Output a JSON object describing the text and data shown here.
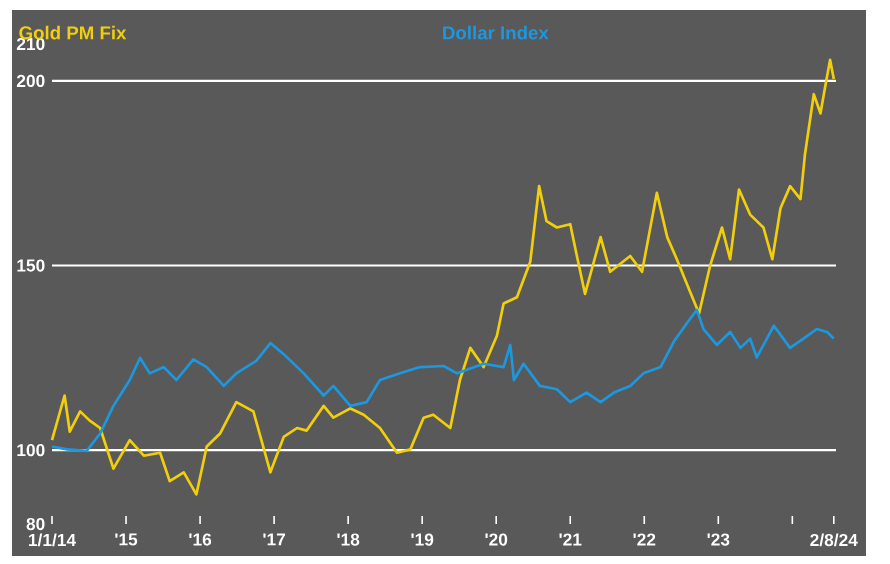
{
  "chart_data": {
    "type": "line",
    "xlim": [
      2014,
      2024.59
    ],
    "ylim": [
      80,
      210
    ],
    "xticks": [
      {
        "value": 2014,
        "label": "1/1/14"
      },
      {
        "value": 2015,
        "label": "'15"
      },
      {
        "value": 2016,
        "label": "'16"
      },
      {
        "value": 2017,
        "label": "'17"
      },
      {
        "value": 2018,
        "label": "'18"
      },
      {
        "value": 2019,
        "label": "'19"
      },
      {
        "value": 2020,
        "label": "'20"
      },
      {
        "value": 2021,
        "label": "'21"
      },
      {
        "value": 2022,
        "label": "'22"
      },
      {
        "value": 2023,
        "label": "'23"
      },
      {
        "value": 2024,
        "label": null
      },
      {
        "value": 2024.56,
        "label": "2/8/24"
      }
    ],
    "yticks": [
      80,
      100,
      150,
      200,
      210
    ],
    "grid": "y",
    "legend": "top",
    "marker": "none",
    "line_style": "solid",
    "series": [
      {
        "name": "Gold PM Fix",
        "color": "#f2cf0c",
        "x": [
          2014.0,
          2014.17,
          2014.24,
          2014.38,
          2014.51,
          2014.65,
          2014.83,
          2015.05,
          2015.24,
          2015.46,
          2015.59,
          2015.78,
          2015.95,
          2016.09,
          2016.27,
          2016.49,
          2016.72,
          2016.95,
          2017.13,
          2017.31,
          2017.44,
          2017.67,
          2017.8,
          2018.03,
          2018.21,
          2018.43,
          2018.66,
          2018.84,
          2019.02,
          2019.15,
          2019.38,
          2019.51,
          2019.65,
          2019.83,
          2020.01,
          2020.1,
          2020.28,
          2020.46,
          2020.58,
          2020.68,
          2020.82,
          2021.0,
          2021.09,
          2021.2,
          2021.41,
          2021.54,
          2021.81,
          2021.97,
          2022.17,
          2022.31,
          2022.44,
          2022.58,
          2022.74,
          2022.89,
          2023.05,
          2023.16,
          2023.28,
          2023.43,
          2023.61,
          2023.73,
          2023.84,
          2023.97,
          2024.11,
          2024.17,
          2024.29,
          2024.38,
          2024.44,
          2024.51,
          2024.56
        ],
        "values": [
          102.7,
          114.8,
          105,
          110.5,
          108,
          106,
          95,
          102.7,
          98.5,
          99.3,
          91.6,
          94,
          88,
          101,
          104.5,
          113,
          110.5,
          94,
          103.6,
          106,
          105.3,
          112,
          108.8,
          111.3,
          109.6,
          106,
          99.3,
          100.2,
          108.8,
          109.6,
          106,
          119,
          127.7,
          122.5,
          131,
          139.7,
          141.4,
          151,
          171.5,
          162,
          160.3,
          161.2,
          152.6,
          142.3,
          157.7,
          148.3,
          152.6,
          148.3,
          169.7,
          157.7,
          151.7,
          144.8,
          137,
          150,
          160.3,
          151.7,
          170.6,
          163.8,
          160.3,
          151.7,
          165.5,
          171.5,
          168,
          180,
          196.4,
          191.2,
          198,
          205.7,
          200.5
        ]
      },
      {
        "name": "Dollar Index",
        "color": "#1b98e0",
        "x": [
          2014.0,
          2014.2,
          2014.47,
          2014.65,
          2014.83,
          2015.05,
          2015.19,
          2015.32,
          2015.51,
          2015.68,
          2015.91,
          2016.09,
          2016.32,
          2016.49,
          2016.76,
          2016.95,
          2017.13,
          2017.4,
          2017.67,
          2017.8,
          2018.03,
          2018.25,
          2018.43,
          2018.7,
          2018.97,
          2019.29,
          2019.47,
          2019.83,
          2020.1,
          2020.19,
          2020.24,
          2020.37,
          2020.59,
          2020.82,
          2021.0,
          2021.22,
          2021.41,
          2021.59,
          2021.81,
          2021.99,
          2022.22,
          2022.4,
          2022.58,
          2022.71,
          2022.8,
          2022.98,
          2023.16,
          2023.3,
          2023.43,
          2023.52,
          2023.75,
          2023.97,
          2024.15,
          2024.33,
          2024.47,
          2024.56
        ],
        "values": [
          101,
          100.2,
          99.8,
          104.5,
          112,
          119,
          125,
          120.8,
          122.5,
          119,
          124.6,
          122.5,
          117.4,
          120.8,
          124.2,
          129,
          126,
          120.8,
          114.8,
          117.4,
          112,
          113,
          119,
          120.8,
          122.5,
          122.8,
          120.8,
          123.4,
          122.5,
          128.5,
          119,
          123.4,
          117.4,
          116.5,
          113,
          115.6,
          113,
          115.6,
          117.4,
          120.8,
          122.5,
          129.4,
          134.5,
          138,
          132.8,
          128.5,
          132,
          127.7,
          130.2,
          125.1,
          133.7,
          127.7,
          130.2,
          132.8,
          132,
          130.2
        ]
      }
    ]
  }
}
